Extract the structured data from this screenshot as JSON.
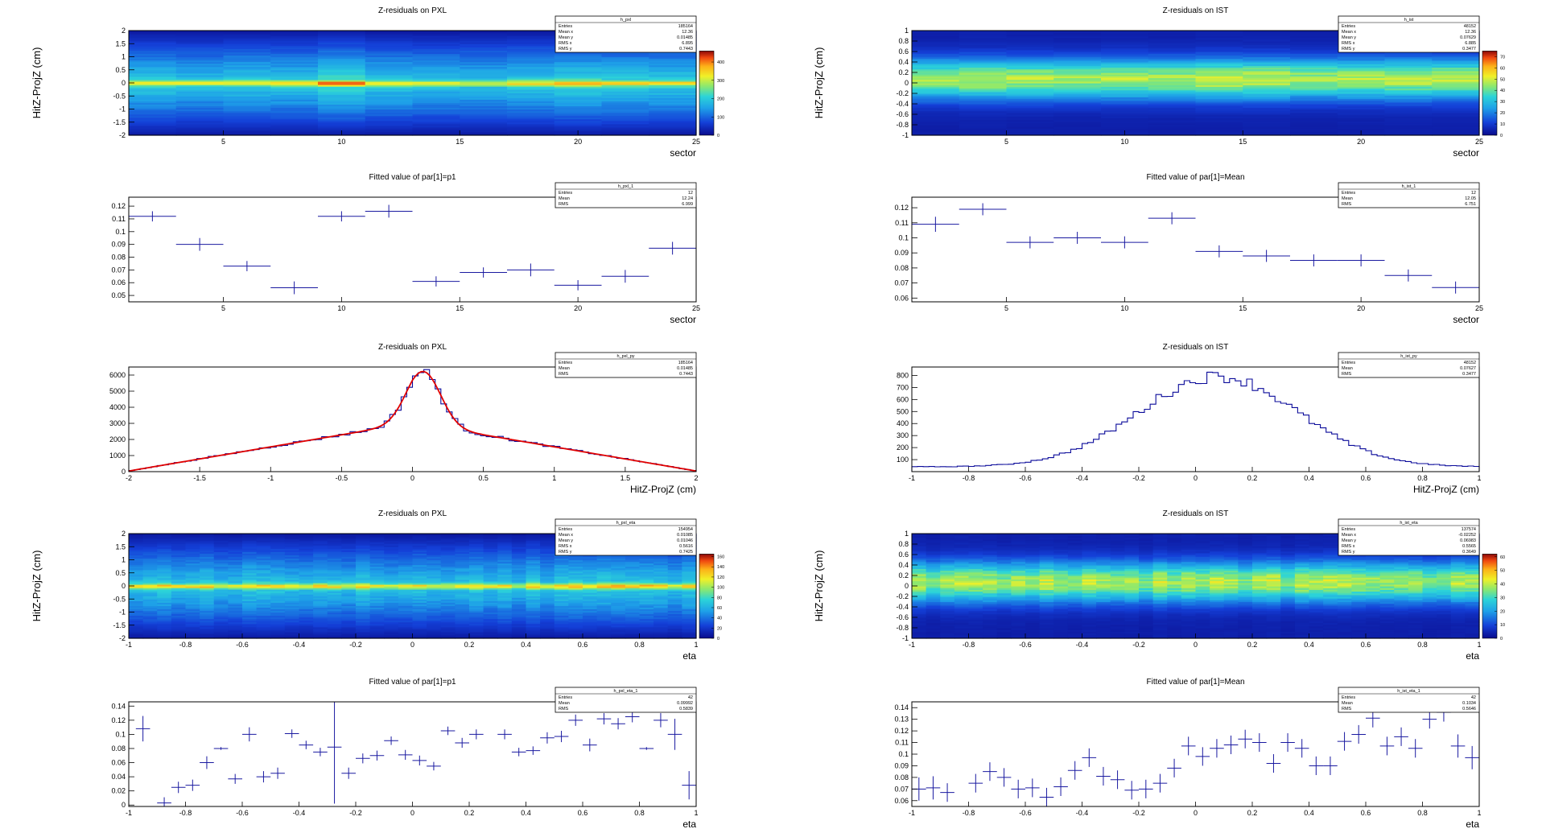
{
  "chart_data": [
    {
      "type": "heatmap",
      "title": "Z-residuals on PXL",
      "xlabel": "sector",
      "ylabel": "HitZ-ProjZ (cm)",
      "xlim": [
        1,
        25
      ],
      "ylim": [
        -2,
        2
      ],
      "zlim": [
        0,
        460
      ],
      "xticks": [
        "5",
        "10",
        "15",
        "20",
        "25"
      ],
      "yticks": [
        "-2",
        "-1.5",
        "-1",
        "-0.5",
        "0",
        "0.5",
        "1",
        "1.5",
        "2"
      ],
      "zticks": [
        "0",
        "100",
        "200",
        "300",
        "400"
      ],
      "profile": "pxl",
      "peak_x": [
        10
      ],
      "stats": {
        "name": "h_pxl",
        "rows": [
          [
            "Entries",
            "185164"
          ],
          [
            "Mean x",
            "12.36"
          ],
          [
            "Mean y",
            "0.01485"
          ],
          [
            "RMS x",
            "6.895"
          ],
          [
            "RMS y",
            "0.7443"
          ]
        ]
      }
    },
    {
      "type": "heatmap",
      "title": "Z-residuals on IST",
      "xlabel": "sector",
      "ylabel": "HitZ-ProjZ (cm)",
      "xlim": [
        1,
        25
      ],
      "ylim": [
        -1,
        1
      ],
      "zlim": [
        0,
        75
      ],
      "xticks": [
        "5",
        "10",
        "15",
        "20",
        "25"
      ],
      "yticks": [
        "-1",
        "-0.8",
        "-0.6",
        "-0.4",
        "-0.2",
        "0",
        "0.2",
        "0.4",
        "0.6",
        "0.8",
        "1"
      ],
      "zticks": [
        "0",
        "10",
        "20",
        "30",
        "40",
        "50",
        "60",
        "70"
      ],
      "profile": "ist",
      "stats": {
        "name": "h_ist",
        "rows": [
          [
            "Entries",
            "48152"
          ],
          [
            "Mean x",
            "12.36"
          ],
          [
            "Mean y",
            "0.07629"
          ],
          [
            "RMS x",
            "6.885"
          ],
          [
            "RMS y",
            "0.3477"
          ]
        ]
      }
    },
    {
      "type": "scatter",
      "title": "Fitted value of par[1]=p1",
      "xlabel": "sector",
      "ylabel": "",
      "xlim": [
        1,
        25
      ],
      "ylim": [
        0.045,
        0.127
      ],
      "xticks": [
        "5",
        "10",
        "15",
        "20",
        "25"
      ],
      "yticks": [
        "0.05",
        "0.06",
        "0.07",
        "0.08",
        "0.09",
        "0.1",
        "0.11",
        "0.12"
      ],
      "halfwidth": 1,
      "x": [
        2,
        4,
        6,
        8,
        10,
        12,
        14,
        16,
        18,
        20,
        22,
        24
      ],
      "y": [
        0.112,
        0.09,
        0.073,
        0.056,
        0.112,
        0.116,
        0.061,
        0.068,
        0.07,
        0.058,
        0.065,
        0.087
      ],
      "yerr": [
        0.004,
        0.005,
        0.004,
        0.005,
        0.004,
        0.005,
        0.004,
        0.004,
        0.005,
        0.004,
        0.005,
        0.005
      ],
      "stats": {
        "name": "h_pxl_1",
        "rows": [
          [
            "Entries",
            "12"
          ],
          [
            "Mean",
            "12.24"
          ],
          [
            "RMS",
            "6.999"
          ]
        ]
      }
    },
    {
      "type": "scatter",
      "title": "Fitted value of par[1]=Mean",
      "xlabel": "sector",
      "ylabel": "",
      "xlim": [
        1,
        25
      ],
      "ylim": [
        0.0575,
        0.127
      ],
      "xticks": [
        "5",
        "10",
        "15",
        "20",
        "25"
      ],
      "yticks": [
        "0.06",
        "0.07",
        "0.08",
        "0.09",
        "0.1",
        "0.11",
        "0.12"
      ],
      "halfwidth": 1,
      "x": [
        2,
        4,
        6,
        8,
        10,
        12,
        14,
        16,
        18,
        20,
        22,
        24
      ],
      "y": [
        0.109,
        0.119,
        0.097,
        0.1,
        0.097,
        0.113,
        0.091,
        0.088,
        0.085,
        0.085,
        0.075,
        0.067
      ],
      "yerr": [
        0.005,
        0.004,
        0.004,
        0.004,
        0.004,
        0.004,
        0.004,
        0.004,
        0.004,
        0.004,
        0.004,
        0.004
      ],
      "stats": {
        "name": "h_ist_1",
        "rows": [
          [
            "Entries",
            "12"
          ],
          [
            "Mean",
            "12.05"
          ],
          [
            "RMS",
            "6.751"
          ]
        ]
      }
    },
    {
      "type": "line",
      "title": "Z-residuals on PXL",
      "xlabel": "HitZ-ProjZ (cm)",
      "ylabel": "",
      "xlim": [
        -2,
        2
      ],
      "ylim": [
        0,
        6500
      ],
      "xticks": [
        "-2",
        "-1.5",
        "-1",
        "-0.5",
        "0",
        "0.5",
        "1",
        "1.5",
        "2"
      ],
      "yticks": [
        "0",
        "1000",
        "2000",
        "3000",
        "4000",
        "5000",
        "6000"
      ],
      "histo": "pxl",
      "fit": true,
      "stats": {
        "name": "h_pxl_py",
        "rows": [
          [
            "Entries",
            "185164"
          ],
          [
            "Mean",
            "0.01485"
          ],
          [
            "RMS",
            "0.7443"
          ]
        ]
      }
    },
    {
      "type": "line",
      "title": "Z-residuals on IST",
      "xlabel": "HitZ-ProjZ (cm)",
      "ylabel": "",
      "xlim": [
        -1,
        1
      ],
      "ylim": [
        0,
        870
      ],
      "xticks": [
        "-1",
        "-0.8",
        "-0.6",
        "-0.4",
        "-0.2",
        "0",
        "0.2",
        "0.4",
        "0.6",
        "0.8",
        "1"
      ],
      "yticks": [
        "100",
        "200",
        "300",
        "400",
        "500",
        "600",
        "700",
        "800"
      ],
      "histo": "ist",
      "fit": false,
      "stats": {
        "name": "h_ist_py",
        "rows": [
          [
            "Entries",
            "48152"
          ],
          [
            "Mean",
            "0.07627"
          ],
          [
            "RMS",
            "0.3477"
          ]
        ]
      }
    },
    {
      "type": "heatmap",
      "title": "Z-residuals on PXL",
      "xlabel": "eta",
      "ylabel": "HitZ-ProjZ (cm)",
      "xlim": [
        -1,
        1
      ],
      "ylim": [
        -2,
        2
      ],
      "zlim": [
        0,
        165
      ],
      "xticks": [
        "-1",
        "-0.8",
        "-0.6",
        "-0.4",
        "-0.2",
        "0",
        "0.2",
        "0.4",
        "0.6",
        "0.8",
        "1"
      ],
      "yticks": [
        "-2",
        "-1.5",
        "-1",
        "-0.5",
        "0",
        "0.5",
        "1",
        "1.5",
        "2"
      ],
      "zticks": [
        "0",
        "20",
        "40",
        "60",
        "80",
        "100",
        "120",
        "140",
        "160"
      ],
      "profile": "pxl",
      "stats": {
        "name": "h_pxl_eta",
        "rows": [
          [
            "Entries",
            "154954"
          ],
          [
            "Mean x",
            "0.01085"
          ],
          [
            "Mean y",
            "0.01046"
          ],
          [
            "RMS x",
            "0.5616"
          ],
          [
            "RMS y",
            "0.7425"
          ]
        ]
      }
    },
    {
      "type": "heatmap",
      "title": "Z-residuals on IST",
      "xlabel": "eta",
      "ylabel": "HitZ-ProjZ (cm)",
      "xlim": [
        -1,
        1
      ],
      "ylim": [
        -1,
        1
      ],
      "zlim": [
        0,
        62
      ],
      "xticks": [
        "-1",
        "-0.8",
        "-0.6",
        "-0.4",
        "-0.2",
        "0",
        "0.2",
        "0.4",
        "0.6",
        "0.8",
        "1"
      ],
      "yticks": [
        "-1",
        "-0.8",
        "-0.6",
        "-0.4",
        "-0.2",
        "0",
        "0.2",
        "0.4",
        "0.6",
        "0.8",
        "1"
      ],
      "zticks": [
        "0",
        "10",
        "20",
        "30",
        "40",
        "50",
        "60"
      ],
      "profile": "ist",
      "stats": {
        "name": "h_ist_eta",
        "rows": [
          [
            "Entries",
            "137574"
          ],
          [
            "Mean x",
            "-0.02252"
          ],
          [
            "Mean y",
            "0.06983"
          ],
          [
            "RMS x",
            "0.5565"
          ],
          [
            "RMS y",
            "0.3649"
          ]
        ]
      }
    },
    {
      "type": "scatter",
      "title": "Fitted value of par[1]=p1",
      "xlabel": "eta",
      "ylabel": "",
      "xlim": [
        -1,
        1
      ],
      "ylim": [
        -0.002,
        0.146
      ],
      "xticks": [
        "-1",
        "-0.8",
        "-0.6",
        "-0.4",
        "-0.2",
        "0",
        "0.2",
        "0.4",
        "0.6",
        "0.8",
        "1"
      ],
      "yticks": [
        "0",
        "0.02",
        "0.04",
        "0.06",
        "0.08",
        "0.1",
        "0.12",
        "0.14"
      ],
      "halfwidth": 0.025,
      "x": [
        -0.95,
        -0.875,
        -0.825,
        -0.775,
        -0.725,
        -0.675,
        -0.625,
        -0.575,
        -0.525,
        -0.475,
        -0.425,
        -0.375,
        -0.325,
        -0.275,
        -0.225,
        -0.175,
        -0.125,
        -0.075,
        -0.025,
        0.025,
        0.075,
        0.125,
        0.175,
        0.225,
        0.325,
        0.375,
        0.425,
        0.475,
        0.525,
        0.575,
        0.625,
        0.675,
        0.725,
        0.775,
        0.825,
        0.875,
        0.925,
        0.975
      ],
      "y": [
        0.108,
        0.003,
        0.025,
        0.028,
        0.06,
        0.08,
        0.037,
        0.1,
        0.04,
        0.045,
        0.101,
        0.085,
        0.075,
        0.082,
        0.045,
        0.066,
        0.07,
        0.091,
        0.071,
        0.063,
        0.055,
        0.105,
        0.088,
        0.1,
        0.1,
        0.075,
        0.077,
        0.095,
        0.097,
        0.12,
        0.085,
        0.122,
        0.115,
        0.125,
        0.08,
        0.12,
        0.1,
        0.028
      ],
      "yerr": [
        0.018,
        0.008,
        0.008,
        0.008,
        0.009,
        0.002,
        0.007,
        0.01,
        0.008,
        0.008,
        0.006,
        0.006,
        0.006,
        0.08,
        0.008,
        0.007,
        0.007,
        0.006,
        0.007,
        0.007,
        0.006,
        0.006,
        0.007,
        0.007,
        0.007,
        0.006,
        0.006,
        0.008,
        0.008,
        0.008,
        0.009,
        0.008,
        0.008,
        0.008,
        0.002,
        0.01,
        0.022,
        0.02
      ],
      "stats": {
        "name": "h_pxl_eta_1",
        "rows": [
          [
            "Entries",
            "42"
          ],
          [
            "Mean",
            "0.09992"
          ],
          [
            "RMS",
            "0.5839"
          ]
        ]
      }
    },
    {
      "type": "scatter",
      "title": "Fitted value of par[1]=Mean",
      "xlabel": "eta",
      "ylabel": "",
      "xlim": [
        -1,
        1
      ],
      "ylim": [
        0.055,
        0.145
      ],
      "xticks": [
        "-1",
        "-0.8",
        "-0.6",
        "-0.4",
        "-0.2",
        "0",
        "0.2",
        "0.4",
        "0.6",
        "0.8",
        "1"
      ],
      "yticks": [
        "0.06",
        "0.07",
        "0.08",
        "0.09",
        "0.1",
        "0.11",
        "0.12",
        "0.13",
        "0.14"
      ],
      "halfwidth": 0.025,
      "x": [
        -0.975,
        -0.925,
        -0.875,
        -0.775,
        -0.725,
        -0.675,
        -0.625,
        -0.575,
        -0.525,
        -0.475,
        -0.425,
        -0.375,
        -0.325,
        -0.275,
        -0.225,
        -0.175,
        -0.125,
        -0.075,
        -0.025,
        0.025,
        0.075,
        0.125,
        0.175,
        0.225,
        0.275,
        0.325,
        0.375,
        0.425,
        0.475,
        0.525,
        0.575,
        0.625,
        0.675,
        0.725,
        0.775,
        0.825,
        0.875,
        0.925,
        0.975
      ],
      "y": [
        0.07,
        0.071,
        0.067,
        0.075,
        0.085,
        0.08,
        0.07,
        0.071,
        0.063,
        0.072,
        0.086,
        0.097,
        0.081,
        0.078,
        0.069,
        0.07,
        0.075,
        0.088,
        0.107,
        0.098,
        0.105,
        0.108,
        0.113,
        0.11,
        0.092,
        0.11,
        0.105,
        0.09,
        0.09,
        0.111,
        0.117,
        0.131,
        0.107,
        0.115,
        0.105,
        0.13,
        0.136,
        0.107,
        0.097
      ],
      "yerr": [
        0.01,
        0.01,
        0.008,
        0.008,
        0.008,
        0.008,
        0.008,
        0.008,
        0.008,
        0.008,
        0.008,
        0.008,
        0.008,
        0.008,
        0.008,
        0.008,
        0.008,
        0.008,
        0.008,
        0.008,
        0.008,
        0.008,
        0.008,
        0.008,
        0.008,
        0.008,
        0.008,
        0.008,
        0.008,
        0.008,
        0.008,
        0.008,
        0.008,
        0.008,
        0.008,
        0.008,
        0.008,
        0.01,
        0.01
      ],
      "stats": {
        "name": "h_ist_eta_1",
        "rows": [
          [
            "Entries",
            "42"
          ],
          [
            "Mean",
            "0.1034"
          ],
          [
            "RMS",
            "0.5646"
          ]
        ]
      }
    }
  ]
}
